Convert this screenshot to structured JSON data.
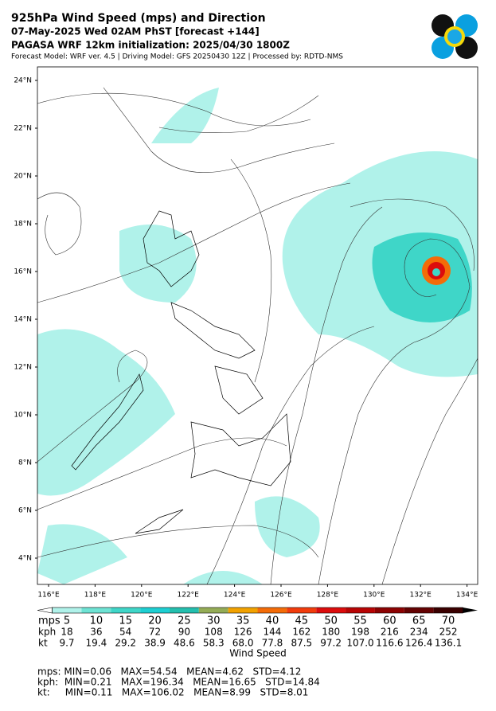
{
  "header": {
    "title": "925hPa Wind Speed (mps) and Direction",
    "subtitle": "07-May-2025 Wed 02AM PhST [forecast +144]",
    "init": "PAGASA WRF 12km initialization: 2025/04/30 1800Z",
    "credits": "Forecast Model: WRF ver. 4.5 | Driving Model: GFS 20250430 12Z | Processed by: RDTD-NMS"
  },
  "map": {
    "lat_labels": [
      "24°N",
      "22°N",
      "20°N",
      "18°N",
      "16°N",
      "14°N",
      "12°N",
      "10°N",
      "8°N",
      "6°N",
      "4°N"
    ],
    "lon_labels": [
      "116°E",
      "118°E",
      "120°E",
      "122°E",
      "124°E",
      "126°E",
      "128°E",
      "130°E",
      "132°E",
      "134°E"
    ]
  },
  "colorbar": {
    "colors": [
      "#b0f2ea",
      "#6ee3d4",
      "#3fd6c8",
      "#1dcfd2",
      "#24bfae",
      "#94ac56",
      "#f2a200",
      "#f46c08",
      "#f23c0c",
      "#dc0c0c",
      "#b80404",
      "#8c0202",
      "#640202",
      "#3a0000"
    ],
    "rows": [
      {
        "unit": "mps",
        "labels": [
          "5",
          "10",
          "15",
          "20",
          "25",
          "30",
          "35",
          "40",
          "45",
          "50",
          "55",
          "60",
          "65",
          "70"
        ]
      },
      {
        "unit": "kph",
        "labels": [
          "18",
          "36",
          "54",
          "72",
          "90",
          "108",
          "126",
          "144",
          "162",
          "180",
          "198",
          "216",
          "234",
          "252"
        ]
      },
      {
        "unit": "kt",
        "labels": [
          "9.7",
          "19.4",
          "29.2",
          "38.9",
          "48.6",
          "58.3",
          "68.0",
          "77.8",
          "87.5",
          "97.2",
          "107.0",
          "116.6",
          "126.4",
          "136.1"
        ]
      }
    ],
    "label": "Wind Speed"
  },
  "stats": [
    "mps: MIN=0.06   MAX=54.54   MEAN=4.62   STD=4.12",
    "kph:  MIN=0.21   MAX=196.34   MEAN=16.65   STD=14.84",
    "kt:     MIN=0.11   MAX=106.02   MEAN=8.99   STD=8.01"
  ]
}
